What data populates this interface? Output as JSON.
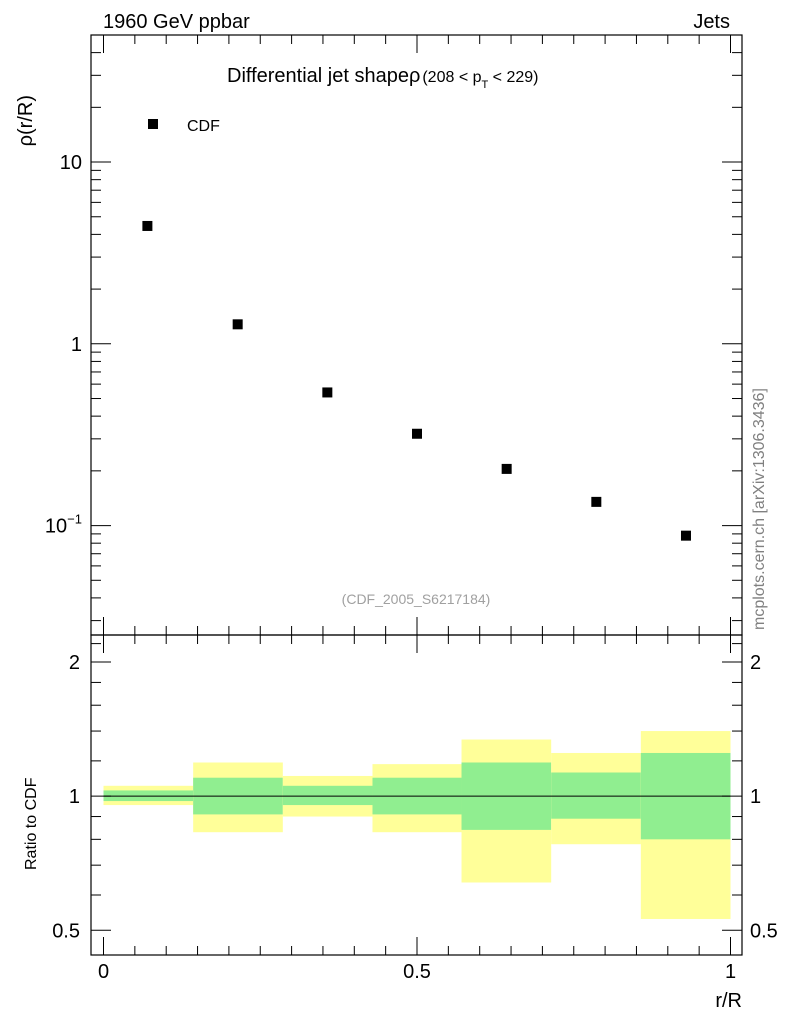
{
  "header": {
    "energy_label": "1960 GeV ppbar",
    "category_label": "Jets"
  },
  "watermark": "mcplots.cern.ch [arXiv:1306.3436]",
  "chart_data": [
    {
      "type": "scatter",
      "panel": "main",
      "title_main": "Differential jet shapeρ",
      "title_range": "(208 < p",
      "title_sub": "T",
      "title_end": " < 229)",
      "ylabel": "ρ(r/R)",
      "yscale": "log",
      "ylim": [
        0.025,
        50
      ],
      "xlim": [
        0,
        1
      ],
      "y_ticks": [
        {
          "value": 10,
          "label": "10"
        },
        {
          "value": 1,
          "label": "1"
        },
        {
          "value": 0.1,
          "label_base": "10",
          "label_exp": "−1"
        }
      ],
      "legend": {
        "position": "top-left",
        "label": "CDF"
      },
      "analysis_label": "(CDF_2005_S6217184)",
      "series": [
        {
          "name": "CDF",
          "x": [
            0.07,
            0.214,
            0.357,
            0.5,
            0.643,
            0.786,
            0.929
          ],
          "y": [
            4.45,
            1.28,
            0.54,
            0.32,
            0.205,
            0.135,
            0.088
          ]
        }
      ]
    },
    {
      "type": "area",
      "panel": "ratio",
      "ylabel": "Ratio to CDF",
      "xlabel": "r/R",
      "yscale": "log",
      "ylim": [
        0.44,
        2.3
      ],
      "xlim": [
        -0.02,
        1.02
      ],
      "x_ticks": [
        {
          "value": 0,
          "label": "0"
        },
        {
          "value": 0.5,
          "label": "0.5"
        },
        {
          "value": 1,
          "label": "1"
        }
      ],
      "y_ticks": [
        {
          "value": 2,
          "label": "2"
        },
        {
          "value": 1,
          "label": "1"
        },
        {
          "value": 0.5,
          "label": "0.5"
        }
      ],
      "reference_line": 1,
      "bins": [
        {
          "lo": 0.0,
          "hi": 0.143,
          "inner": [
            0.975,
            1.03
          ],
          "outer": [
            0.955,
            1.055
          ]
        },
        {
          "lo": 0.143,
          "hi": 0.286,
          "inner": [
            0.91,
            1.1
          ],
          "outer": [
            0.83,
            1.19
          ]
        },
        {
          "lo": 0.286,
          "hi": 0.429,
          "inner": [
            0.955,
            1.055
          ],
          "outer": [
            0.9,
            1.11
          ]
        },
        {
          "lo": 0.429,
          "hi": 0.571,
          "inner": [
            0.91,
            1.1
          ],
          "outer": [
            0.83,
            1.18
          ]
        },
        {
          "lo": 0.571,
          "hi": 0.714,
          "inner": [
            0.84,
            1.19
          ],
          "outer": [
            0.64,
            1.34
          ]
        },
        {
          "lo": 0.714,
          "hi": 0.857,
          "inner": [
            0.89,
            1.13
          ],
          "outer": [
            0.78,
            1.25
          ]
        },
        {
          "lo": 0.857,
          "hi": 1.0,
          "inner": [
            0.8,
            1.25
          ],
          "outer": [
            0.53,
            1.4
          ]
        }
      ],
      "inner_color": "#90ee90",
      "outer_color": "#ffff99"
    }
  ]
}
